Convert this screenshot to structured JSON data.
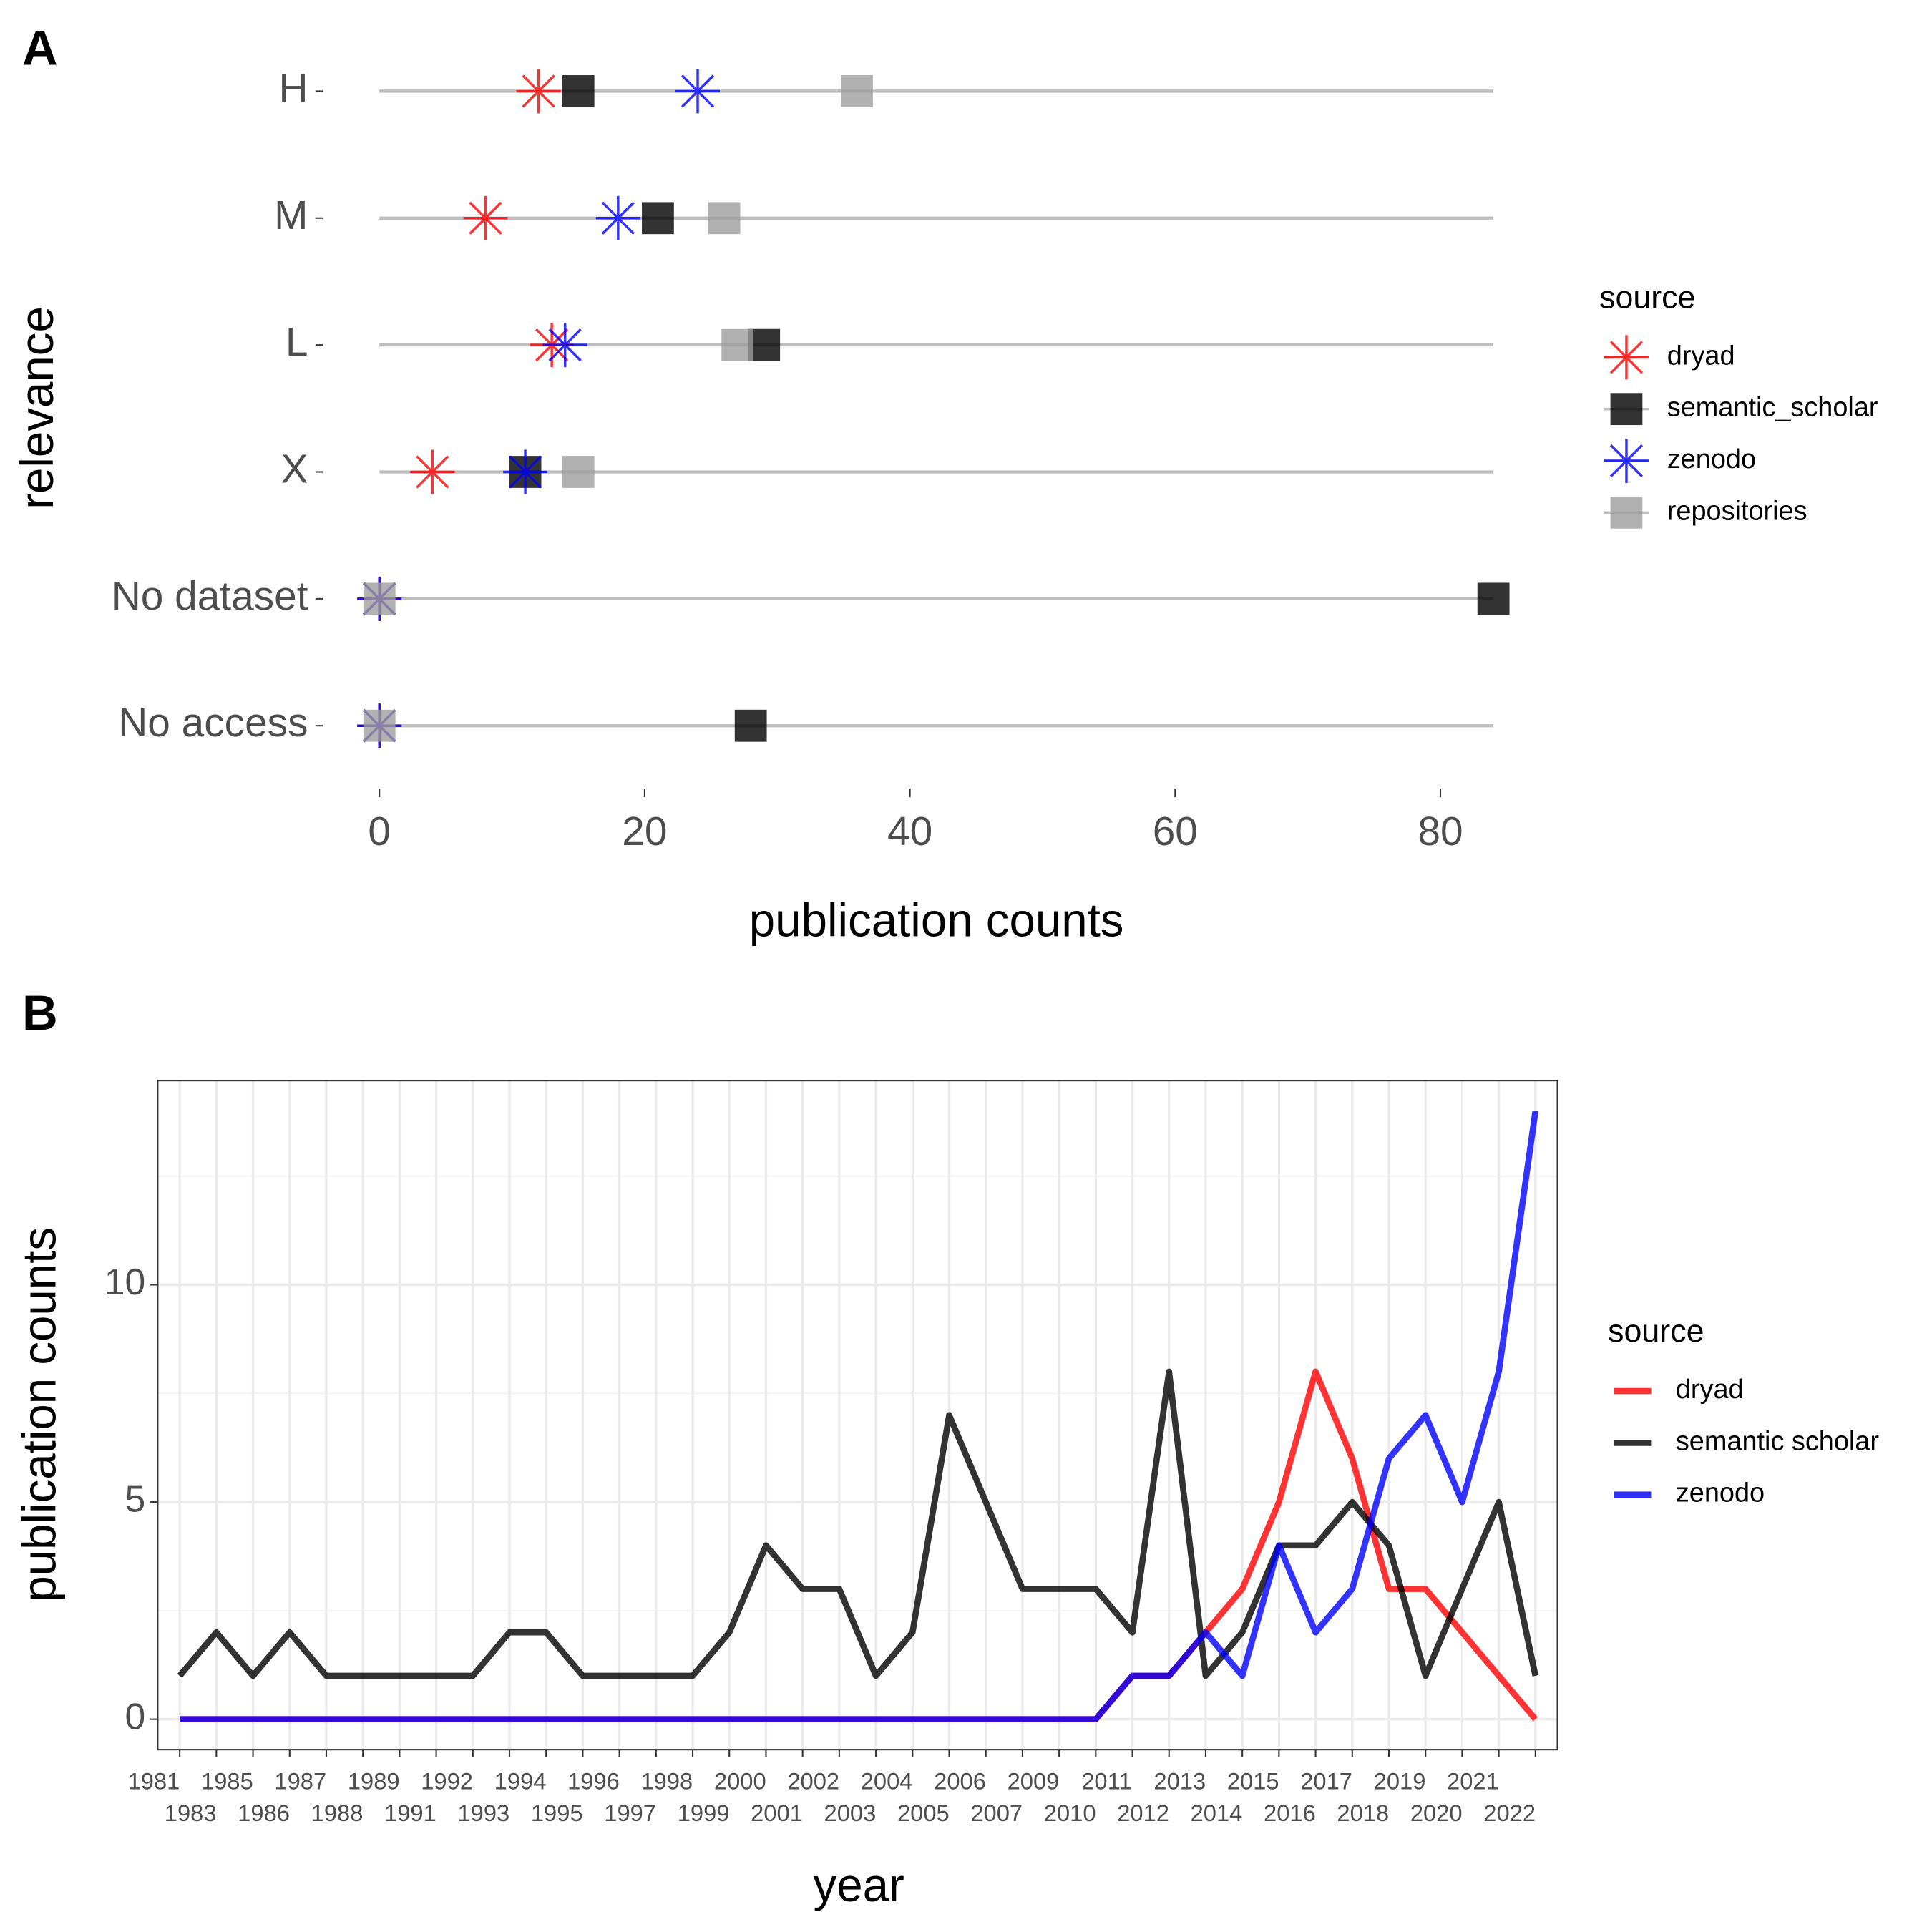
{
  "chart_data": [
    {
      "type": "dot",
      "panel_label": "A",
      "categories": [
        "H",
        "M",
        "L",
        "X",
        "No dataset",
        "No access"
      ],
      "series": [
        {
          "name": "dryad",
          "color": "#ff0000",
          "shape": "asterisk",
          "values": [
            12,
            8,
            13,
            4,
            0,
            0
          ]
        },
        {
          "name": "semantic_scholar",
          "color": "#000000",
          "shape": "square",
          "values": [
            15,
            21,
            29,
            11,
            84,
            28
          ]
        },
        {
          "name": "zenodo",
          "color": "#0000ff",
          "shape": "asterisk",
          "values": [
            24,
            18,
            14,
            11,
            0,
            0
          ]
        },
        {
          "name": "repositories",
          "color": "#9e9e9e",
          "shape": "square",
          "values": [
            36,
            26,
            27,
            15,
            0,
            0
          ]
        }
      ],
      "alpha": 0.8,
      "segment_xlim": [
        0,
        84
      ],
      "xlim": [
        -4.2,
        88.2
      ],
      "xticks": [
        0,
        20,
        40,
        60,
        80
      ],
      "xlabel": "publication counts",
      "ylabel": "relevance",
      "legend_title": "source",
      "legend": "right"
    },
    {
      "type": "line",
      "panel_label": "B",
      "categories": [
        "1981",
        "1983",
        "1985",
        "1986",
        "1987",
        "1988",
        "1989",
        "1991",
        "1992",
        "1993",
        "1994",
        "1995",
        "1996",
        "1997",
        "1998",
        "1999",
        "2000",
        "2001",
        "2002",
        "2003",
        "2004",
        "2005",
        "2006",
        "2007",
        "2009",
        "2010",
        "2011",
        "2012",
        "2013",
        "2014",
        "2015",
        "2016",
        "2017",
        "2018",
        "2019",
        "2020",
        "2021",
        "2022"
      ],
      "series": [
        {
          "name": "dryad",
          "color": "#ff0000",
          "values": [
            0,
            0,
            0,
            0,
            0,
            0,
            0,
            0,
            0,
            0,
            0,
            0,
            0,
            0,
            0,
            0,
            0,
            0,
            0,
            0,
            0,
            0,
            0,
            0,
            0,
            0,
            1,
            1,
            2,
            3,
            5,
            8,
            6,
            3,
            3,
            2,
            1,
            0
          ]
        },
        {
          "name": "semantic scholar",
          "color": "#000000",
          "values": [
            1,
            2,
            1,
            2,
            1,
            1,
            1,
            1,
            1,
            2,
            2,
            1,
            1,
            1,
            1,
            2,
            4,
            3,
            3,
            1,
            2,
            7,
            5,
            3,
            3,
            3,
            2,
            8,
            1,
            2,
            4,
            4,
            5,
            4,
            1,
            3,
            5,
            1
          ]
        },
        {
          "name": "zenodo",
          "color": "#0000ff",
          "values": [
            0,
            0,
            0,
            0,
            0,
            0,
            0,
            0,
            0,
            0,
            0,
            0,
            0,
            0,
            0,
            0,
            0,
            0,
            0,
            0,
            0,
            0,
            0,
            0,
            0,
            0,
            1,
            1,
            2,
            1,
            4,
            2,
            3,
            6,
            7,
            5,
            8,
            14
          ]
        }
      ],
      "alpha": 0.8,
      "ylim": [
        -0.7,
        14.7
      ],
      "yticks": [
        0,
        5,
        10
      ],
      "y_minor_ticks": [
        2.5,
        7.5,
        12.5
      ],
      "grid": true,
      "xlabel": "year",
      "ylabel": "publication counts",
      "legend_title": "source",
      "legend": "right"
    }
  ]
}
